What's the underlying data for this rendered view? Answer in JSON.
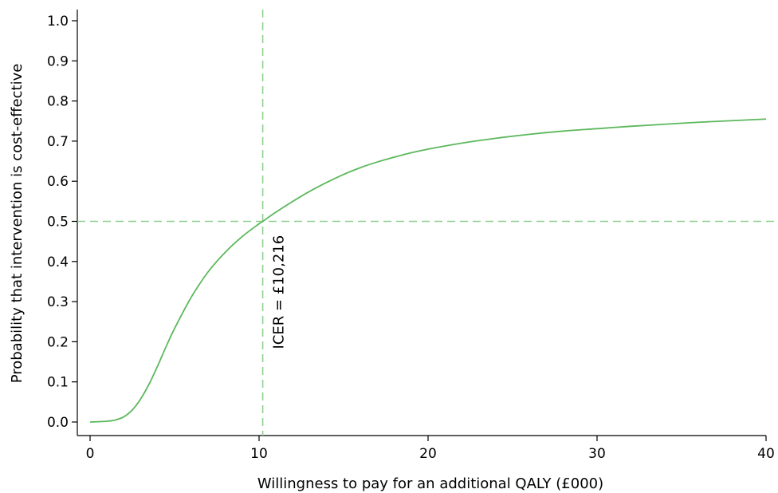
{
  "chart_data": {
    "type": "line",
    "title": "",
    "xlabel": "Willingness to pay for an additional QALY (£000)",
    "ylabel": "Probability that intervention is cost-effective",
    "xlim": [
      0,
      40
    ],
    "ylim": [
      0,
      1
    ],
    "x_ticks": [
      0,
      10,
      20,
      30,
      40
    ],
    "y_ticks": [
      "0.0",
      "0.1",
      "0.2",
      "0.3",
      "0.4",
      "0.5",
      "0.6",
      "0.7",
      "0.8",
      "0.9",
      "1.0"
    ],
    "grid": false,
    "legend": "none",
    "series": [
      {
        "x": [
          0,
          1,
          1.5,
          2,
          2.5,
          3,
          3.5,
          4,
          4.5,
          5,
          6,
          7,
          8,
          9,
          10,
          10.216,
          11,
          12,
          13,
          14,
          15,
          16,
          17,
          18,
          19,
          20,
          22,
          24,
          26,
          28,
          30,
          32,
          34,
          36,
          38,
          40
        ],
        "y": [
          0.0,
          0.002,
          0.005,
          0.013,
          0.03,
          0.058,
          0.095,
          0.14,
          0.188,
          0.233,
          0.312,
          0.375,
          0.423,
          0.462,
          0.494,
          0.5,
          0.523,
          0.55,
          0.575,
          0.597,
          0.617,
          0.634,
          0.648,
          0.66,
          0.671,
          0.68,
          0.695,
          0.707,
          0.717,
          0.725,
          0.731,
          0.737,
          0.742,
          0.747,
          0.751,
          0.755
        ]
      }
    ],
    "reference_lines": {
      "vertical_x": 10.216,
      "horizontal_y": 0.5
    },
    "annotation": "ICER = £10,216",
    "colors": {
      "curve": "#5cb85c",
      "reference": "#8ed08e",
      "axis": "#000000"
    }
  }
}
